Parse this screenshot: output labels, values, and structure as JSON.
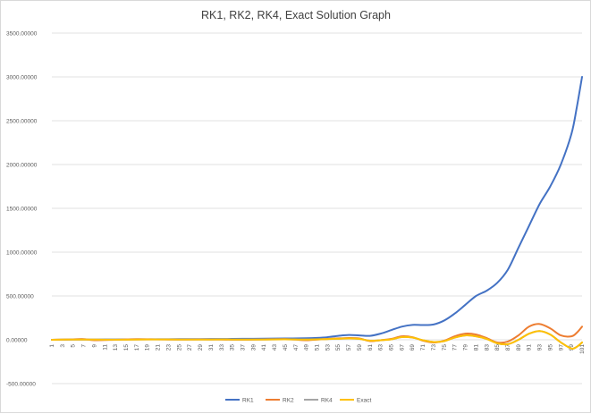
{
  "chart_data": {
    "type": "line",
    "title": "RK1, RK2, RK4, Exact Solution Graph",
    "xlabel": "",
    "ylabel": "",
    "ylim": [
      -500,
      3500
    ],
    "yticks": [
      -500,
      0,
      500,
      1000,
      1500,
      2000,
      2500,
      3000,
      3500
    ],
    "ytick_labels": [
      "-500.00000",
      "0.00000",
      "500.00000",
      "1000.00000",
      "1500.00000",
      "2000.00000",
      "2500.00000",
      "3000.00000",
      "3500.00000"
    ],
    "x_range": [
      1,
      101
    ],
    "x_tick_labels": [
      "1",
      "3",
      "5",
      "7",
      "9",
      "11",
      "13",
      "15",
      "17",
      "19",
      "21",
      "23",
      "25",
      "27",
      "29",
      "31",
      "33",
      "35",
      "37",
      "39",
      "41",
      "43",
      "45",
      "47",
      "49",
      "51",
      "53",
      "55",
      "57",
      "59",
      "61",
      "63",
      "65",
      "67",
      "69",
      "71",
      "73",
      "75",
      "77",
      "79",
      "81",
      "83",
      "85",
      "87",
      "89",
      "91",
      "93",
      "95",
      "97",
      "99",
      "101"
    ],
    "grid": true,
    "legend_position": "bottom",
    "series": [
      {
        "name": "RK1",
        "color": "#4472c4",
        "points": [
          [
            1,
            0
          ],
          [
            5,
            2
          ],
          [
            9,
            3
          ],
          [
            13,
            4
          ],
          [
            17,
            5
          ],
          [
            21,
            6
          ],
          [
            25,
            7
          ],
          [
            29,
            8
          ],
          [
            33,
            9
          ],
          [
            37,
            11
          ],
          [
            41,
            13
          ],
          [
            45,
            15
          ],
          [
            49,
            18
          ],
          [
            51,
            22
          ],
          [
            53,
            30
          ],
          [
            55,
            45
          ],
          [
            57,
            55
          ],
          [
            59,
            50
          ],
          [
            61,
            45
          ],
          [
            63,
            70
          ],
          [
            65,
            110
          ],
          [
            67,
            150
          ],
          [
            69,
            170
          ],
          [
            71,
            168
          ],
          [
            73,
            175
          ],
          [
            75,
            220
          ],
          [
            77,
            300
          ],
          [
            79,
            400
          ],
          [
            81,
            500
          ],
          [
            83,
            560
          ],
          [
            85,
            650
          ],
          [
            87,
            800
          ],
          [
            89,
            1050
          ],
          [
            91,
            1300
          ],
          [
            93,
            1550
          ],
          [
            95,
            1750
          ],
          [
            97,
            2000
          ],
          [
            99,
            2350
          ],
          [
            100,
            2650
          ],
          [
            101,
            3000
          ]
        ]
      },
      {
        "name": "RK2",
        "color": "#ed7d31",
        "points": [
          [
            1,
            0
          ],
          [
            5,
            5
          ],
          [
            7,
            8
          ],
          [
            9,
            -5
          ],
          [
            13,
            0
          ],
          [
            17,
            8
          ],
          [
            21,
            5
          ],
          [
            25,
            2
          ],
          [
            29,
            5
          ],
          [
            33,
            3
          ],
          [
            37,
            0
          ],
          [
            41,
            5
          ],
          [
            45,
            8
          ],
          [
            47,
            2
          ],
          [
            49,
            -5
          ],
          [
            53,
            10
          ],
          [
            57,
            20
          ],
          [
            59,
            15
          ],
          [
            61,
            -15
          ],
          [
            63,
            -5
          ],
          [
            65,
            10
          ],
          [
            67,
            40
          ],
          [
            69,
            30
          ],
          [
            71,
            -10
          ],
          [
            73,
            -30
          ],
          [
            75,
            -10
          ],
          [
            77,
            40
          ],
          [
            79,
            70
          ],
          [
            81,
            60
          ],
          [
            83,
            20
          ],
          [
            85,
            -30
          ],
          [
            87,
            -20
          ],
          [
            89,
            50
          ],
          [
            91,
            150
          ],
          [
            93,
            180
          ],
          [
            95,
            130
          ],
          [
            97,
            50
          ],
          [
            99,
            40
          ],
          [
            100,
            80
          ],
          [
            101,
            150
          ]
        ]
      },
      {
        "name": "RK4",
        "color": "#a5a5a5",
        "points": [
          [
            1,
            0
          ],
          [
            5,
            3
          ],
          [
            9,
            2
          ],
          [
            13,
            1
          ],
          [
            17,
            3
          ],
          [
            21,
            4
          ],
          [
            25,
            3
          ],
          [
            29,
            2
          ],
          [
            33,
            4
          ],
          [
            37,
            2
          ],
          [
            41,
            3
          ],
          [
            45,
            5
          ],
          [
            49,
            2
          ],
          [
            53,
            8
          ],
          [
            57,
            15
          ],
          [
            59,
            10
          ],
          [
            61,
            -10
          ],
          [
            63,
            -5
          ],
          [
            65,
            5
          ],
          [
            67,
            30
          ],
          [
            69,
            25
          ],
          [
            71,
            -5
          ],
          [
            73,
            -25
          ],
          [
            75,
            -15
          ],
          [
            77,
            25
          ],
          [
            79,
            50
          ],
          [
            81,
            40
          ],
          [
            83,
            10
          ],
          [
            85,
            -40
          ],
          [
            87,
            -50
          ],
          [
            89,
            0
          ],
          [
            91,
            70
          ],
          [
            93,
            100
          ],
          [
            95,
            60
          ],
          [
            97,
            -30
          ],
          [
            99,
            -100
          ],
          [
            100,
            -80
          ],
          [
            101,
            -30
          ]
        ]
      },
      {
        "name": "Exact",
        "color": "#ffc000",
        "points": [
          [
            1,
            0
          ],
          [
            5,
            3
          ],
          [
            9,
            2
          ],
          [
            13,
            1
          ],
          [
            17,
            3
          ],
          [
            21,
            4
          ],
          [
            25,
            3
          ],
          [
            29,
            2
          ],
          [
            33,
            4
          ],
          [
            37,
            2
          ],
          [
            41,
            3
          ],
          [
            45,
            5
          ],
          [
            49,
            2
          ],
          [
            53,
            8
          ],
          [
            57,
            15
          ],
          [
            59,
            10
          ],
          [
            61,
            -10
          ],
          [
            63,
            -5
          ],
          [
            65,
            5
          ],
          [
            67,
            30
          ],
          [
            69,
            25
          ],
          [
            71,
            -5
          ],
          [
            73,
            -25
          ],
          [
            75,
            -15
          ],
          [
            77,
            25
          ],
          [
            79,
            50
          ],
          [
            81,
            40
          ],
          [
            83,
            10
          ],
          [
            85,
            -40
          ],
          [
            87,
            -50
          ],
          [
            89,
            0
          ],
          [
            91,
            70
          ],
          [
            93,
            100
          ],
          [
            95,
            60
          ],
          [
            97,
            -30
          ],
          [
            99,
            -100
          ],
          [
            100,
            -80
          ],
          [
            101,
            -30
          ]
        ]
      }
    ]
  }
}
